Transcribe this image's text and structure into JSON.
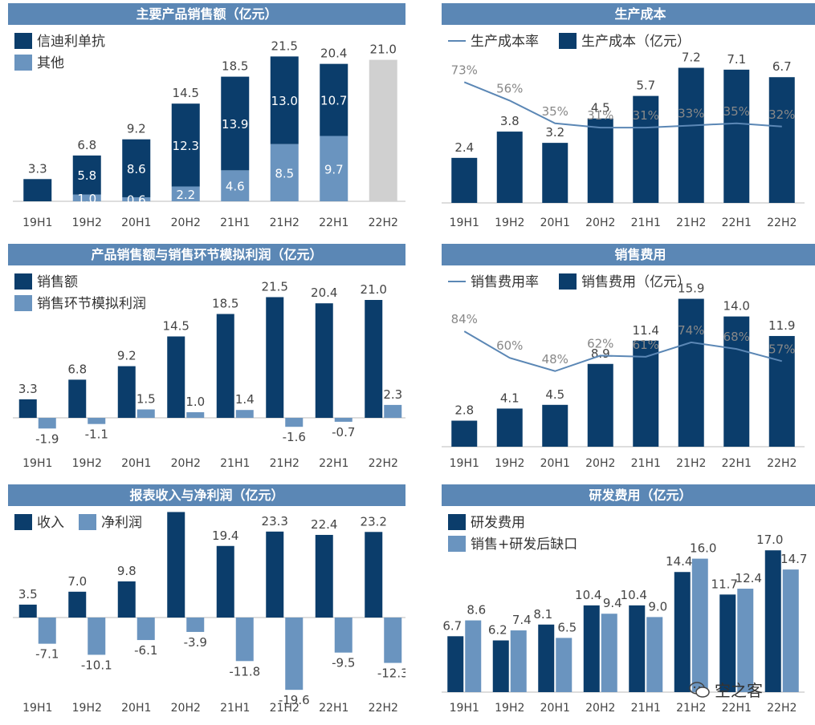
{
  "colors": {
    "dark": "#0b3d6b",
    "light": "#6a94bf",
    "grey": "#d0d0d0",
    "line": "#5b87b5",
    "title_bg": "#5b87b5"
  },
  "chart_data": [
    {
      "type": "bar",
      "title": "主要产品销售额（亿元）",
      "categories": [
        "19H1",
        "19H2",
        "20H1",
        "20H2",
        "21H1",
        "21H2",
        "22H1",
        "22H2"
      ],
      "stacked": true,
      "series": [
        {
          "name": "信迪利单抗",
          "values": [
            3.3,
            5.8,
            8.6,
            12.3,
            13.9,
            13.0,
            10.7,
            21.0
          ]
        },
        {
          "name": "其他",
          "values": [
            0,
            1.0,
            0.6,
            2.2,
            4.6,
            8.5,
            9.7,
            0
          ]
        }
      ],
      "totals": [
        3.3,
        6.8,
        9.2,
        14.5,
        18.5,
        21.5,
        20.4,
        21.0
      ],
      "ylim": [
        0,
        22
      ]
    },
    {
      "type": "bar+line",
      "title": "生产成本",
      "categories": [
        "19H1",
        "19H2",
        "20H1",
        "20H2",
        "21H1",
        "21H2",
        "22H1",
        "22H2"
      ],
      "series": [
        {
          "name": "生产成本（亿元）",
          "values": [
            2.4,
            3.8,
            3.2,
            4.5,
            5.7,
            7.2,
            7.1,
            6.7
          ]
        },
        {
          "name": "生产成本率",
          "values": [
            "73%",
            "56%",
            "35%",
            "31%",
            "31%",
            "33%",
            "35%",
            "32%"
          ]
        }
      ],
      "ylim": [
        0,
        8
      ]
    },
    {
      "type": "bar",
      "title": "产品销售额与销售环节模拟利润（亿元）",
      "categories": [
        "19H1",
        "19H2",
        "20H1",
        "20H2",
        "21H1",
        "21H2",
        "22H1",
        "22H2"
      ],
      "series": [
        {
          "name": "销售额",
          "values": [
            3.3,
            6.8,
            9.2,
            14.5,
            18.5,
            21.5,
            20.4,
            21.0
          ]
        },
        {
          "name": "销售环节模拟利润",
          "values": [
            -1.9,
            -1.1,
            1.5,
            1.0,
            1.4,
            -1.6,
            -0.7,
            2.3
          ]
        }
      ],
      "ylim": [
        -3,
        23
      ]
    },
    {
      "type": "bar+line",
      "title": "销售费用",
      "categories": [
        "19H1",
        "19H2",
        "20H1",
        "20H2",
        "21H1",
        "21H2",
        "22H1",
        "22H2"
      ],
      "series": [
        {
          "name": "销售费用（亿元）",
          "values": [
            2.8,
            4.1,
            4.5,
            8.9,
            11.4,
            15.9,
            14.0,
            11.9
          ]
        },
        {
          "name": "销售费用率",
          "values": [
            "84%",
            "60%",
            "48%",
            "62%",
            "61%",
            "74%",
            "68%",
            "57%"
          ]
        }
      ],
      "ylim": [
        0,
        18
      ]
    },
    {
      "type": "bar",
      "title": "报表收入与净利润（亿元）",
      "categories": [
        "19H1",
        "19H2",
        "20H1",
        "20H2",
        "21H1",
        "21H2",
        "22H1",
        "22H2"
      ],
      "series": [
        {
          "name": "收入",
          "values": [
            3.5,
            7.0,
            9.8,
            28.6,
            19.4,
            23.3,
            22.4,
            23.2
          ]
        },
        {
          "name": "净利润",
          "values": [
            -7.1,
            -10.1,
            -6.1,
            -3.9,
            -11.8,
            -19.6,
            -9.5,
            -12.3
          ]
        }
      ],
      "ylim": [
        -22,
        30
      ]
    },
    {
      "type": "bar",
      "title": "研发费用（亿元）",
      "categories": [
        "19H1",
        "19H2",
        "20H1",
        "20H2",
        "21H1",
        "21H2",
        "22H1",
        "22H2"
      ],
      "series": [
        {
          "name": "研发费用",
          "values": [
            6.7,
            6.2,
            8.1,
            10.4,
            10.4,
            14.4,
            11.7,
            17.0
          ]
        },
        {
          "name": "销售+研发后缺口",
          "values": [
            8.6,
            7.4,
            6.5,
            9.4,
            9.0,
            16.0,
            12.4,
            14.7
          ]
        }
      ],
      "ylim": [
        0,
        19
      ]
    }
  ],
  "watermark": {
    "text": "空之客",
    "icon": "wechat-icon"
  }
}
